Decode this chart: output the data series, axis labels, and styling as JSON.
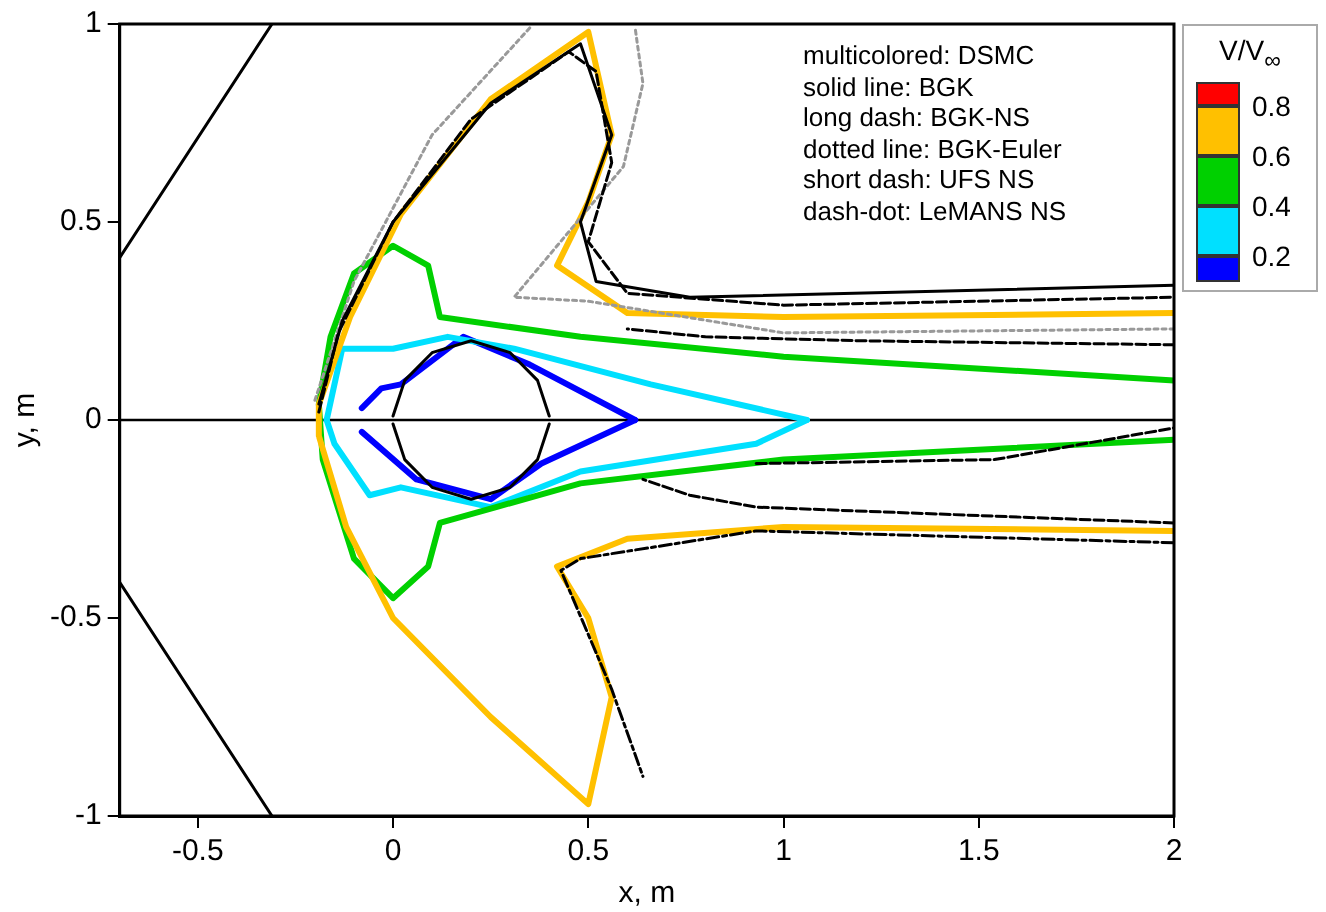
{
  "chart_data": {
    "type": "line",
    "xlabel": "x, m",
    "ylabel": "y, m",
    "xlim": [
      -0.7,
      2
    ],
    "ylim": [
      -1,
      1
    ],
    "xticks": [
      -0.5,
      0,
      0.5,
      1,
      1.5,
      2
    ],
    "yticks": [
      -1,
      -0.5,
      0,
      0.5,
      1
    ],
    "grid": false,
    "legend": false,
    "marker": "none",
    "clabel": "V/V$_{∞}$",
    "clim": [
      0.1,
      0.9
    ],
    "cticks": [
      0.2,
      0.4,
      0.6,
      0.8
    ],
    "colors": [
      "#0000ff",
      "#00e0ff",
      "#00d000",
      "#ffc000",
      "#ff0000"
    ],
    "annotations": [
      "multicolored: DSMC",
      "solid line: BGK",
      "long dash: BGK-NS",
      "dotted line: BGK-Euler",
      "short dash: UFS NS",
      "dash-dot: LeMANS NS"
    ],
    "ref_lines": [
      {
        "axis": "y",
        "value": 0,
        "color": "#000000"
      }
    ],
    "series": [
      {
        "color": "#ffc000",
        "line_style": "solid",
        "x": [
          2,
          1.0,
          0.6,
          0.42,
          0.5,
          0.56,
          0.5,
          0.25,
          0.02,
          -0.11,
          -0.19,
          -0.19,
          -0.12,
          0.0,
          0.25,
          0.5,
          0.56,
          0.5,
          0.42,
          0.6,
          1.0,
          2
        ],
        "values": [
          0.27,
          0.26,
          0.27,
          0.39,
          0.55,
          0.72,
          0.98,
          0.81,
          0.52,
          0.26,
          0.04,
          -0.04,
          -0.27,
          -0.5,
          -0.75,
          -0.97,
          -0.7,
          -0.5,
          -0.37,
          -0.3,
          -0.27,
          -0.28
        ]
      },
      {
        "color": "#00d000",
        "line_style": "solid",
        "x": [
          2,
          1.0,
          0.48,
          0.12,
          0.09,
          0.0,
          -0.1,
          -0.16,
          -0.19,
          -0.18,
          -0.1,
          0.0,
          0.09,
          0.12,
          0.48,
          1.0,
          2
        ],
        "values": [
          0.1,
          0.16,
          0.21,
          0.26,
          0.39,
          0.44,
          0.37,
          0.21,
          0.04,
          -0.1,
          -0.35,
          -0.45,
          -0.37,
          -0.26,
          -0.16,
          -0.1,
          -0.05
        ]
      },
      {
        "color": "#00e0ff",
        "line_style": "solid",
        "x": [
          -0.17,
          -0.13,
          0.0,
          0.14,
          0.31,
          0.66,
          1.06
        ],
        "values": [
          0.0,
          0.18,
          0.18,
          0.21,
          0.18,
          0.09,
          0.0
        ]
      },
      {
        "color": "#00e0ff",
        "line_style": "solid",
        "x": [
          1.06,
          0.93,
          0.48,
          0.25,
          0.02,
          -0.06,
          -0.15,
          -0.17
        ],
        "values": [
          0.0,
          -0.06,
          -0.13,
          -0.22,
          -0.17,
          -0.19,
          -0.06,
          0.0
        ]
      },
      {
        "color": "#0000ff",
        "line_style": "solid",
        "x": [
          -0.08,
          -0.03,
          0.02,
          0.18,
          0.35,
          0.62
        ],
        "values": [
          0.03,
          0.08,
          0.09,
          0.21,
          0.14,
          0.0
        ]
      },
      {
        "color": "#0000ff",
        "line_style": "solid",
        "x": [
          0.62,
          0.38,
          0.25,
          0.06,
          -0.08
        ],
        "values": [
          0.0,
          -0.11,
          -0.2,
          -0.15,
          -0.03
        ]
      },
      {
        "color": "#000000",
        "line_style": "solid",
        "x": [
          2,
          0.76,
          0.52,
          0.48,
          0.56,
          0.48,
          0.25,
          0.0,
          -0.13,
          -0.19
        ],
        "values": [
          0.34,
          0.31,
          0.35,
          0.5,
          0.72,
          0.95,
          0.8,
          0.5,
          0.25,
          0.04
        ]
      },
      {
        "color": "#000000",
        "line_style": "dashed",
        "x": [
          -0.19,
          -0.14,
          0.0,
          0.2,
          0.45,
          0.52,
          0.56,
          0.5,
          0.6,
          1.0,
          2
        ],
        "values": [
          0.02,
          0.22,
          0.5,
          0.76,
          0.93,
          0.88,
          0.65,
          0.45,
          0.32,
          0.29,
          0.31
        ]
      },
      {
        "color": "#000000",
        "line_style": "dashed",
        "x": [
          2,
          1.2,
          0.8,
          0.6
        ],
        "values": [
          0.19,
          0.2,
          0.21,
          0.23
        ]
      },
      {
        "color": "#999999",
        "line_style": "dotted",
        "x": [
          2,
          1.0,
          0.5,
          0.31,
          0.59,
          0.64,
          0.62
        ],
        "values": [
          0.23,
          0.22,
          0.3,
          0.31,
          0.64,
          0.85,
          0.99
        ]
      },
      {
        "color": "#999999",
        "line_style": "dotted",
        "x": [
          0.35,
          0.1,
          -0.1,
          -0.2
        ],
        "values": [
          0.99,
          0.72,
          0.35,
          0.05
        ]
      },
      {
        "color": "#000000",
        "line_style": "dashed",
        "x": [
          2,
          0.93,
          0.76,
          0.64
        ],
        "values": [
          -0.26,
          -0.22,
          -0.19,
          -0.15
        ]
      },
      {
        "color": "#000000",
        "line_style": "dashed",
        "x": [
          0.93,
          1.54,
          2
        ],
        "values": [
          -0.11,
          -0.1,
          -0.02
        ]
      },
      {
        "color": "#000000",
        "line_style": "dashdot",
        "x": [
          2,
          0.93,
          0.48,
          0.43,
          0.56,
          0.64
        ],
        "values": [
          -0.31,
          -0.28,
          -0.35,
          -0.38,
          -0.68,
          -0.9
        ]
      },
      {
        "color": "#000000",
        "line_style": "solid",
        "x": [
          0.4,
          0.37,
          0.3,
          0.2,
          0.1,
          0.03,
          0.0
        ],
        "values": [
          0.01,
          0.1,
          0.17,
          0.2,
          0.17,
          0.1,
          0.01
        ]
      },
      {
        "color": "#000000",
        "line_style": "solid",
        "x": [
          0.0,
          0.03,
          0.1,
          0.2,
          0.3,
          0.37,
          0.4
        ],
        "values": [
          -0.01,
          -0.1,
          -0.17,
          -0.2,
          -0.17,
          -0.1,
          -0.01
        ]
      },
      {
        "color": "#000000",
        "line_style": "solid",
        "x": [
          -0.7,
          -0.31
        ],
        "values": [
          0.41,
          1
        ]
      },
      {
        "color": "#000000",
        "line_style": "solid",
        "x": [
          -0.31,
          -0.7
        ],
        "values": [
          -1,
          -0.41
        ]
      }
    ]
  }
}
